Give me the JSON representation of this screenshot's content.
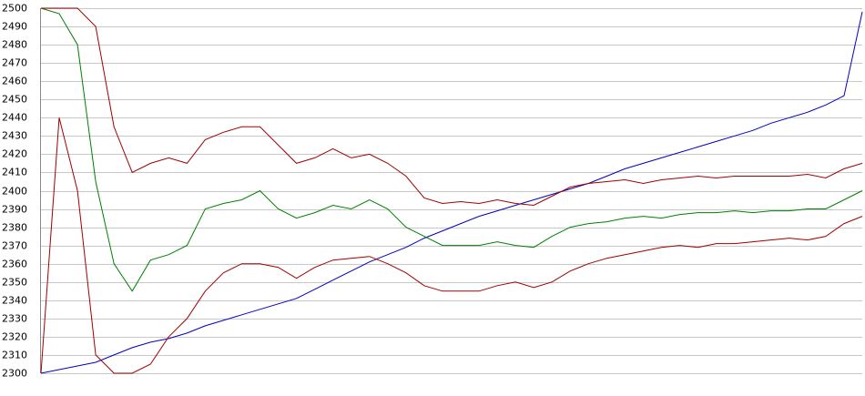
{
  "chart_data": {
    "type": "line",
    "ylim": [
      2300,
      2500
    ],
    "yticks": [
      2300,
      2310,
      2320,
      2330,
      2340,
      2350,
      2360,
      2370,
      2380,
      2390,
      2400,
      2410,
      2420,
      2430,
      2440,
      2450,
      2460,
      2470,
      2480,
      2490,
      2500
    ],
    "grid": true,
    "series": [
      {
        "color": "#0000c0",
        "values": [
          2300,
          2302,
          2304,
          2306,
          2310,
          2314,
          2317,
          2319,
          2322,
          2326,
          2329,
          2332,
          2335,
          2338,
          2341,
          2346,
          2351,
          2356,
          2361,
          2365,
          2369,
          2374,
          2378,
          2382,
          2386,
          2389,
          2392,
          2395,
          2398,
          2401,
          2404,
          2408,
          2412,
          2415,
          2418,
          2421,
          2424,
          2427,
          2430,
          2433,
          2437,
          2440,
          2443,
          2447,
          2452,
          2498
        ]
      },
      {
        "color": "#008000",
        "values": [
          2500,
          2497,
          2480,
          2405,
          2360,
          2345,
          2362,
          2365,
          2370,
          2390,
          2393,
          2395,
          2400,
          2390,
          2385,
          2388,
          2392,
          2390,
          2395,
          2390,
          2380,
          2375,
          2370,
          2370,
          2370,
          2372,
          2370,
          2369,
          2375,
          2380,
          2382,
          2383,
          2385,
          2386,
          2385,
          2387,
          2388,
          2388,
          2389,
          2388,
          2389,
          2389,
          2390,
          2390,
          2395,
          2400
        ]
      },
      {
        "color": "#a00000",
        "values": [
          2500,
          2500,
          2500,
          2490,
          2435,
          2410,
          2415,
          2418,
          2415,
          2428,
          2432,
          2435,
          2435,
          2425,
          2415,
          2418,
          2423,
          2418,
          2420,
          2415,
          2408,
          2396,
          2393,
          2394,
          2393,
          2395,
          2393,
          2392,
          2397,
          2402,
          2404,
          2405,
          2406,
          2404,
          2406,
          2407,
          2408,
          2407,
          2408,
          2408,
          2408,
          2408,
          2409,
          2407,
          2412,
          2415
        ]
      },
      {
        "color": "#a00000",
        "values": [
          2300,
          2440,
          2400,
          2310,
          2300,
          2300,
          2305,
          2320,
          2330,
          2345,
          2355,
          2360,
          2360,
          2358,
          2352,
          2358,
          2362,
          2363,
          2364,
          2360,
          2355,
          2348,
          2345,
          2345,
          2345,
          2348,
          2350,
          2347,
          2350,
          2356,
          2360,
          2363,
          2365,
          2367,
          2369,
          2370,
          2369,
          2371,
          2371,
          2372,
          2373,
          2374,
          2373,
          2375,
          2382,
          2386
        ]
      }
    ]
  }
}
